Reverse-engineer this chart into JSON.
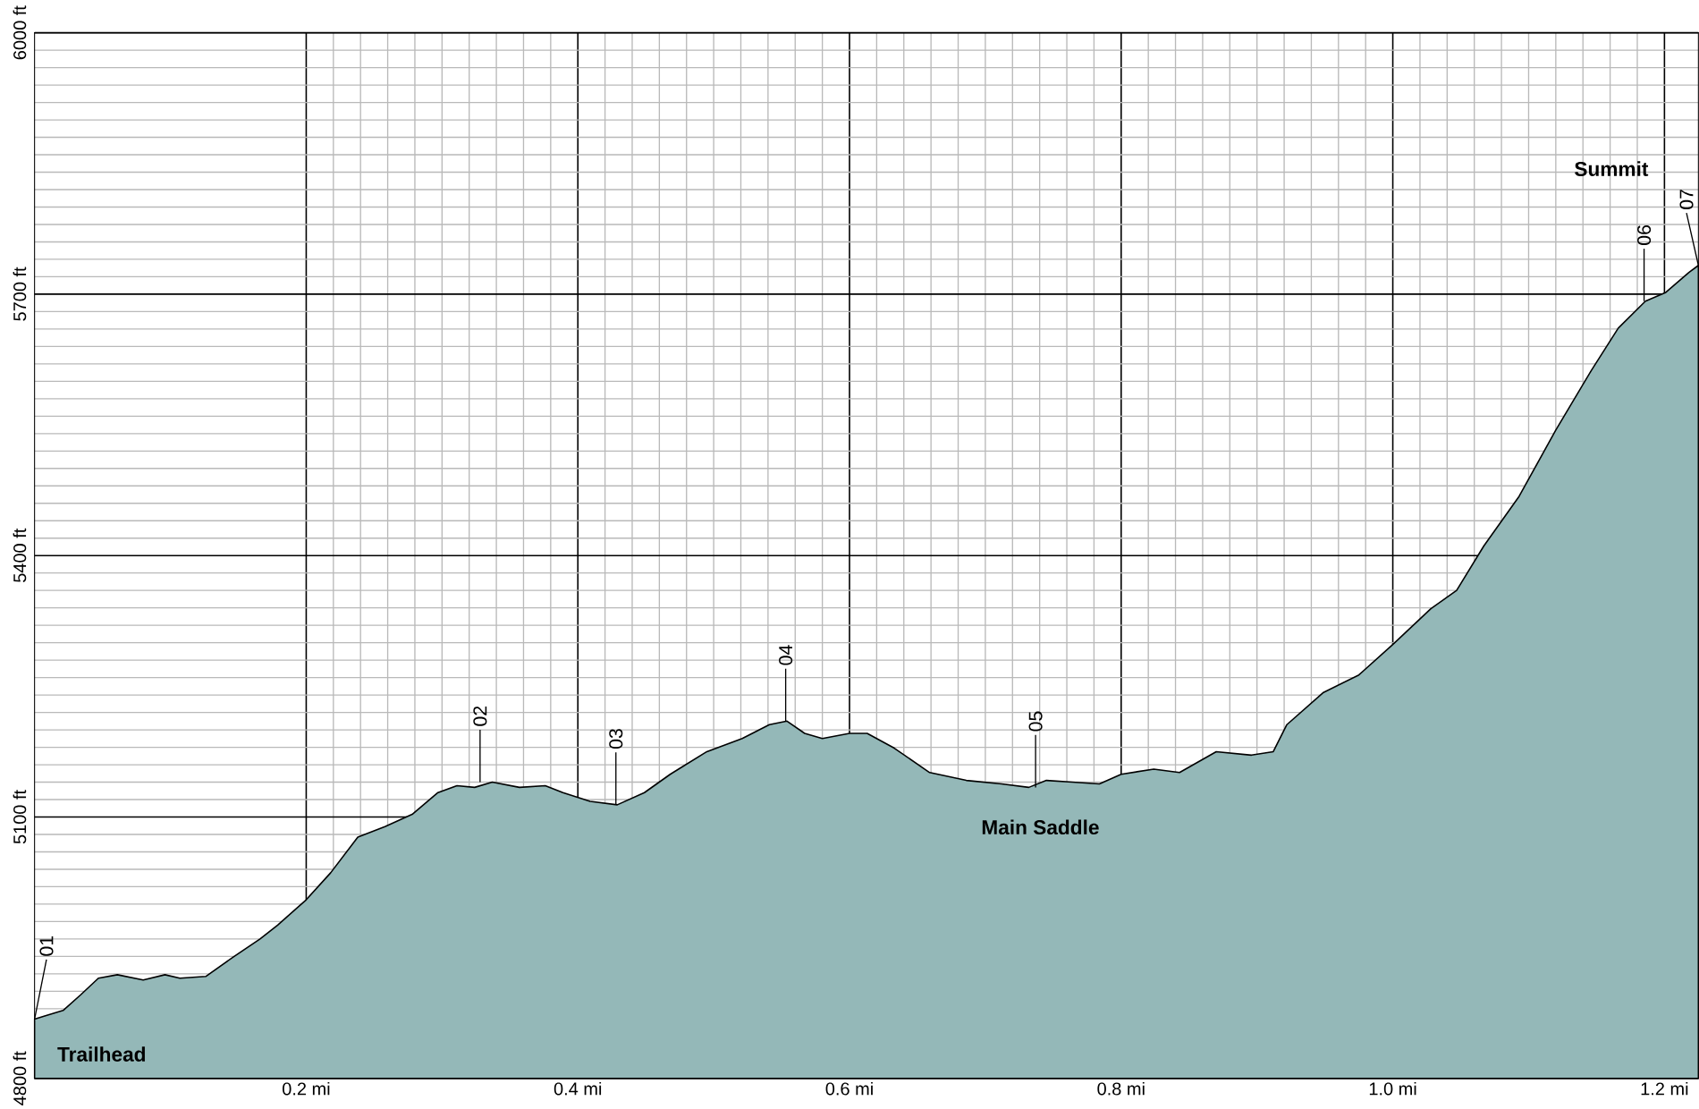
{
  "chart_data": {
    "type": "area",
    "x": [
      0,
      0.008,
      0.021,
      0.034,
      0.047,
      0.061,
      0.08,
      0.096,
      0.107,
      0.126,
      0.146,
      0.166,
      0.179,
      0.2,
      0.218,
      0.238,
      0.258,
      0.278,
      0.297,
      0.311,
      0.324,
      0.337,
      0.357,
      0.376,
      0.389,
      0.409,
      0.429,
      0.449,
      0.468,
      0.495,
      0.521,
      0.541,
      0.554,
      0.567,
      0.58,
      0.6,
      0.613,
      0.633,
      0.659,
      0.686,
      0.712,
      0.732,
      0.745,
      0.764,
      0.784,
      0.8,
      0.824,
      0.843,
      0.87,
      0.896,
      0.912,
      0.922,
      0.949,
      0.975,
      1.0,
      1.028,
      1.047,
      1.067,
      1.093,
      1.12,
      1.146,
      1.166,
      1.186,
      1.201,
      1.218,
      1.225
    ],
    "series": [
      {
        "color": "#94b8b8",
        "values": [
          4868,
          4872,
          4878,
          4896,
          4915,
          4919,
          4913,
          4919,
          4915,
          4917,
          4939,
          4960,
          4976,
          5005,
          5036,
          5077,
          5089,
          5103,
          5128,
          5136,
          5134,
          5140,
          5134,
          5136,
          5128,
          5118,
          5114,
          5128,
          5149,
          5175,
          5190,
          5206,
          5210,
          5196,
          5190,
          5196,
          5196,
          5179,
          5151,
          5142,
          5138,
          5134,
          5142,
          5140,
          5138,
          5149,
          5155,
          5151,
          5175,
          5171,
          5175,
          5206,
          5243,
          5263,
          5298,
          5339,
          5360,
          5411,
          5468,
          5544,
          5612,
          5661,
          5692,
          5702,
          5725,
          5733
        ]
      }
    ],
    "xlim": [
      0,
      1.225
    ],
    "ylim": [
      4800,
      6000
    ],
    "xticks": [
      {
        "value": 0.2,
        "label": "0.2 mi"
      },
      {
        "value": 0.4,
        "label": "0.4 mi"
      },
      {
        "value": 0.6,
        "label": "0.6 mi"
      },
      {
        "value": 0.8,
        "label": "0.8 mi"
      },
      {
        "value": 1.0,
        "label": "1.0 mi"
      },
      {
        "value": 1.2,
        "label": "1.2 mi"
      }
    ],
    "yticks": [
      {
        "value": 4800,
        "label": "4800 ft"
      },
      {
        "value": 5100,
        "label": "5100 ft"
      },
      {
        "value": 5400,
        "label": "5400 ft"
      },
      {
        "value": 5700,
        "label": "5700 ft"
      },
      {
        "value": 6000,
        "label": "6000 ft"
      }
    ],
    "grid": true,
    "annotations": [
      {
        "text": "01",
        "x": 0.0,
        "y": 4868
      },
      {
        "text": "02",
        "x": 0.328,
        "y": 5140
      },
      {
        "text": "03",
        "x": 0.428,
        "y": 5114
      },
      {
        "text": "04",
        "x": 0.553,
        "y": 5210
      },
      {
        "text": "05",
        "x": 0.737,
        "y": 5134
      },
      {
        "text": "06",
        "x": 1.185,
        "y": 5692
      },
      {
        "text": "07",
        "x": 1.225,
        "y": 5733
      },
      {
        "text": "Trailhead",
        "x": 0.0,
        "y": 4868
      },
      {
        "text": "Main Saddle",
        "x": 0.737,
        "y": 5134
      },
      "Summit"
    ]
  }
}
